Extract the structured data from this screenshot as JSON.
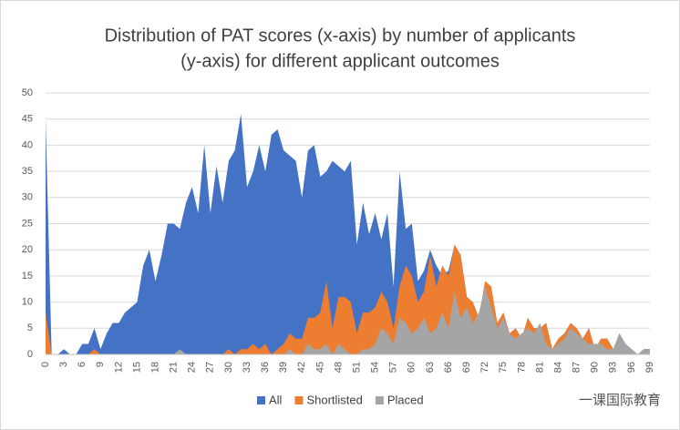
{
  "chart_data": {
    "type": "area",
    "title": [
      "Distribution of PAT scores (x-axis) by number of applicants",
      "(y-axis) for different applicant outcomes"
    ],
    "categories": [
      0,
      null,
      null,
      3,
      null,
      null,
      6,
      null,
      null,
      9,
      null,
      null,
      12,
      null,
      null,
      15,
      null,
      null,
      18,
      null,
      null,
      21,
      null,
      null,
      24,
      null,
      null,
      27,
      null,
      null,
      30,
      null,
      null,
      33,
      null,
      null,
      36,
      null,
      null,
      39,
      null,
      null,
      42,
      null,
      null,
      45,
      null,
      null,
      48,
      null,
      null,
      51,
      null,
      null,
      54,
      null,
      null,
      57,
      null,
      null,
      60,
      null,
      null,
      63,
      null,
      null,
      66,
      null,
      null,
      69,
      null,
      null,
      72,
      null,
      null,
      75,
      null,
      null,
      78,
      null,
      null,
      81,
      null,
      null,
      84,
      null,
      null,
      87,
      null,
      null,
      90,
      null,
      null,
      93,
      null,
      null,
      96,
      null,
      null,
      99
    ],
    "series": [
      {
        "name": "All",
        "color": "#4472c4",
        "values": [
          45,
          0,
          0,
          1,
          0,
          0,
          2,
          2,
          5,
          1,
          4,
          6,
          6,
          8,
          9,
          10,
          17,
          20,
          14,
          19,
          25,
          25,
          24,
          29,
          32,
          27,
          40,
          27,
          36,
          29,
          37,
          39,
          46,
          32,
          35,
          40,
          35,
          42,
          43,
          39,
          38,
          37,
          30,
          39,
          40,
          34,
          35,
          37,
          36,
          35,
          37,
          21,
          29,
          23,
          27,
          22,
          27,
          13,
          35,
          24,
          25,
          14,
          16,
          20,
          17,
          15,
          16,
          21,
          19,
          11,
          10,
          7,
          14,
          12,
          6,
          8,
          4,
          5,
          3,
          7,
          5,
          5,
          6,
          1,
          3,
          4,
          6,
          5,
          3,
          5,
          1,
          3,
          3,
          1,
          4,
          2,
          1,
          0,
          1,
          1
        ]
      },
      {
        "name": "Shortlisted",
        "color": "#ed7d31",
        "values": [
          8,
          0,
          0,
          0,
          0,
          0,
          0,
          0,
          1,
          0,
          0,
          0,
          0,
          0,
          0,
          0,
          0,
          0,
          0,
          0,
          0,
          0,
          0,
          0,
          0,
          0,
          0,
          0,
          0,
          0,
          1,
          0,
          1,
          1,
          2,
          1,
          2,
          0,
          1,
          2,
          4,
          3,
          3,
          7,
          7,
          8,
          14,
          5,
          11,
          11,
          10,
          4,
          8,
          8,
          9,
          12,
          10,
          5,
          13,
          17,
          15,
          10,
          12,
          19,
          13,
          17,
          15,
          21,
          19,
          11,
          10,
          7,
          14,
          13,
          6,
          8,
          4,
          5,
          3,
          7,
          5,
          5,
          6,
          1,
          3,
          4,
          6,
          5,
          3,
          5,
          1,
          3,
          3,
          1,
          4,
          2,
          1,
          0,
          1,
          1
        ]
      },
      {
        "name": "Placed",
        "color": "#a5a5a5",
        "values": [
          0,
          0,
          0,
          0,
          0,
          0,
          0,
          0,
          0,
          0,
          0,
          0,
          0,
          0,
          0,
          0,
          0,
          0,
          0,
          0,
          0,
          0,
          1,
          0,
          0,
          0,
          0,
          0,
          0,
          0,
          0,
          0,
          0,
          0,
          0,
          0,
          0,
          0,
          0,
          0,
          1,
          0,
          0,
          2,
          1,
          1,
          2,
          0,
          2,
          1,
          0,
          0,
          1,
          1,
          2,
          5,
          4,
          2,
          7,
          6,
          4,
          5,
          7,
          4,
          5,
          8,
          5,
          12,
          7,
          9,
          6,
          8,
          13,
          9,
          5,
          7,
          4,
          3,
          4,
          5,
          4,
          6,
          2,
          1,
          2,
          3,
          5,
          4,
          3,
          2,
          2,
          2,
          1,
          1,
          4,
          2,
          1,
          0,
          1,
          1
        ]
      }
    ],
    "ylim": [
      0,
      50
    ],
    "yticks": [
      0,
      5,
      10,
      15,
      20,
      25,
      30,
      35,
      40,
      45,
      50
    ],
    "grid": true,
    "legend": "bottom",
    "watermark": "一课国际教育"
  }
}
